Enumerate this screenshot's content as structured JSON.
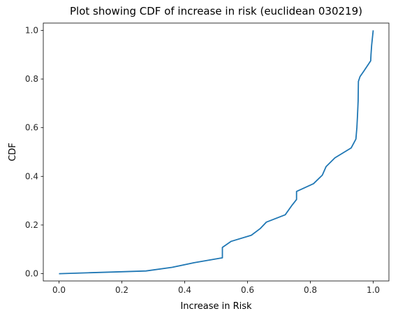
{
  "chart_data": {
    "type": "line",
    "title": "Plot showing CDF of increase in risk (euclidean 030219)",
    "xlabel": "Increase in Risk",
    "ylabel": "CDF",
    "xlim": [
      -0.05,
      1.05
    ],
    "ylim": [
      -0.03,
      1.03
    ],
    "grid": false,
    "legend": "none",
    "x_ticks": [
      "0.0",
      "0.2",
      "0.4",
      "0.6",
      "0.8",
      "1.0"
    ],
    "y_ticks": [
      "0.0",
      "0.2",
      "0.4",
      "0.6",
      "0.8",
      "1.0"
    ],
    "series": [
      {
        "color": "#1f77b4",
        "x": [
          0.0,
          0.1,
          0.2,
          0.277,
          0.36,
          0.43,
          0.52,
          0.52,
          0.548,
          0.612,
          0.64,
          0.66,
          0.72,
          0.742,
          0.756,
          0.756,
          0.81,
          0.838,
          0.85,
          0.878,
          0.93,
          0.945,
          0.948,
          0.95,
          0.952,
          0.953,
          0.958,
          0.97,
          0.992,
          0.993,
          0.995,
          1.0
        ],
        "y": [
          0.0,
          0.004,
          0.008,
          0.011,
          0.026,
          0.045,
          0.065,
          0.108,
          0.133,
          0.158,
          0.185,
          0.212,
          0.242,
          0.282,
          0.305,
          0.338,
          0.37,
          0.405,
          0.44,
          0.476,
          0.517,
          0.553,
          0.6,
          0.65,
          0.71,
          0.79,
          0.81,
          0.832,
          0.875,
          0.9,
          0.94,
          1.0
        ]
      }
    ]
  }
}
